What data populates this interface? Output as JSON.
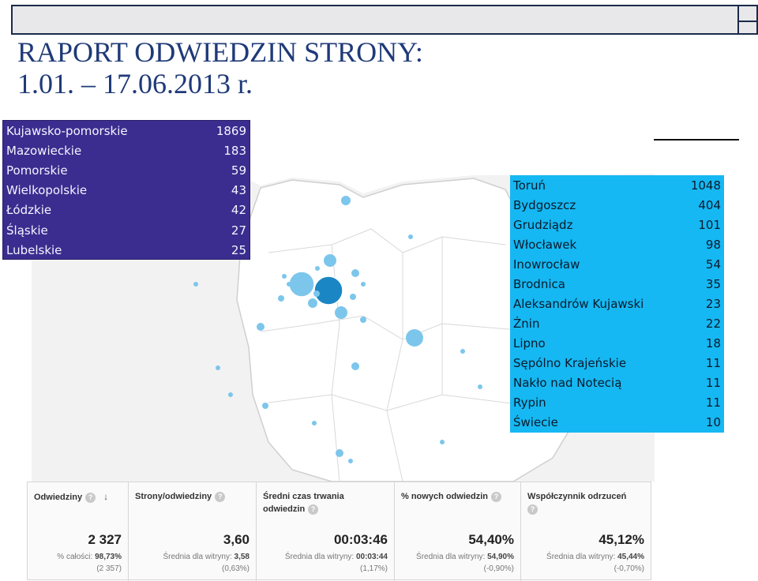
{
  "title": {
    "line1": "RAPORT ODWIEDZIN STRONY:",
    "line2": "1.01. – 17.06.2013 r."
  },
  "regions": [
    {
      "name": "Kujawsko-pomorskie",
      "value": "1869"
    },
    {
      "name": "Mazowieckie",
      "value": "183"
    },
    {
      "name": "Pomorskie",
      "value": "59"
    },
    {
      "name": "Wielkopolskie",
      "value": "43"
    },
    {
      "name": "Łódzkie",
      "value": "42"
    },
    {
      "name": "Śląskie",
      "value": "27"
    },
    {
      "name": "Lubelskie",
      "value": "25"
    }
  ],
  "cities": [
    {
      "name": "Toruń",
      "value": "1048"
    },
    {
      "name": "Bydgoszcz",
      "value": "404"
    },
    {
      "name": "Grudziądz",
      "value": "101"
    },
    {
      "name": "Włocławek",
      "value": "98"
    },
    {
      "name": "Inowrocław",
      "value": "54"
    },
    {
      "name": "Brodnica",
      "value": "35"
    },
    {
      "name": "Aleksandrów Kujawski",
      "value": "23"
    },
    {
      "name": "Żnin",
      "value": "22"
    },
    {
      "name": "Lipno",
      "value": "18"
    },
    {
      "name": "Sępólno Krajeńskie",
      "value": "11"
    },
    {
      "name": "Nakło nad Notecią",
      "value": "11"
    },
    {
      "name": "Rypin",
      "value": "11"
    },
    {
      "name": "Świecie",
      "value": "10"
    }
  ],
  "stats": {
    "visits": {
      "label": "Odwiedziny",
      "value": "2 327",
      "sub_label": "% całości:",
      "sub_value": "98,73%",
      "sub2": "(2 357)"
    },
    "pages": {
      "label": "Strony/odwiedziny",
      "value": "3,60",
      "sub_label": "Średnia dla witryny:",
      "sub_value": "3,58",
      "sub2": "(0,63%)"
    },
    "duration": {
      "label_line1": "Średni czas trwania",
      "label_line2": "odwiedzin",
      "value": "00:03:46",
      "sub_label": "Średnia dla witryny:",
      "sub_value": "00:03:44",
      "sub2": "(1,17%)"
    },
    "new_visits": {
      "label": "% nowych odwiedzin",
      "value": "54,40%",
      "sub_label": "Średnia dla witryny:",
      "sub_value": "54,90%",
      "sub2": "(-0,90%)"
    },
    "bounce": {
      "label": "Współczynnik odrzuceń",
      "value": "45,12%",
      "sub_label": "Średnia dla witryny:",
      "sub_value": "45,44%",
      "sub2": "(-0,70%)"
    }
  },
  "help_glyph": "?",
  "sort_arrow": "↓",
  "colors": {
    "title": "#1f3a78",
    "regions_bg": "#3a2d8f",
    "cities_bg": "#15b8f2",
    "bubble_dark": "#1a86c4",
    "bubble_light": "#7cc6ec"
  }
}
